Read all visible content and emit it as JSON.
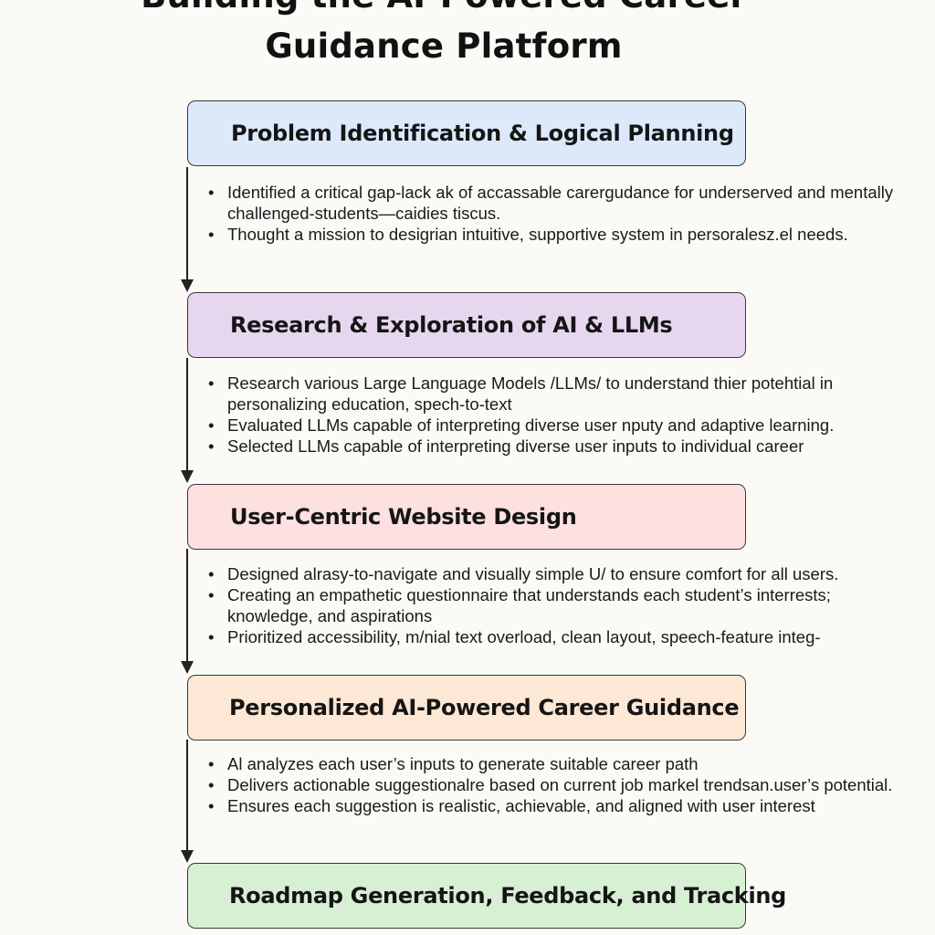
{
  "title": {
    "line1": "Building the AI-Powered Career",
    "line2": "Guidance Platform"
  },
  "colors": {
    "step1": "#dce9fb",
    "step2": "#e6d7ef",
    "step3": "#fde0e0",
    "step4": "#fde7d5",
    "step5": "#d7f0d4",
    "line": "#222222"
  },
  "steps": [
    {
      "label": "Problem Identification & Logical Planning",
      "bullets": [
        "Identified a critical gap-lack ak of accassable carergudance for underserved and mentally challenged-students—caidies tiscus.",
        "Thought a mission to desigrian intuitive, supportive system in persoralesz.el needs."
      ]
    },
    {
      "label": "Research & Exploration of AI & LLMs",
      "bullets": [
        "Research various Large Language Models /LLMs/ to understand thier potehtial in personalizing education, spech-to-text",
        "Evaluated LLMs capable of interpreting diverse user nputy and adaptive learning.",
        "Selected LLMs capable of interpreting diverse user inputs to individual career"
      ]
    },
    {
      "label": "User-Centric Website Design",
      "bullets": [
        "Designed alrasy-to-navigate and visually simple U/ to ensure comfort for all users.",
        "Creating an empathetic questionnaire that understands each student’s interrests; knowledge, and aspirations",
        "Prioritized accessibility, m/nial text overload, clean layout, speech-feature integ-"
      ]
    },
    {
      "label": "Personalized AI-Powered Career Guidance",
      "bullets": [
        "Al analyzes each user’s inputs to generate suitable career path",
        "Delivers actionable suggestionalre based on current job markel trendsan.user’s potential.",
        "Ensures each suggestion is realistic, achievable, and aligned with user interest"
      ]
    },
    {
      "label": "Roadmap Generation, Feedback, and Tracking",
      "bullets": []
    }
  ],
  "bullet_glyph": "•"
}
